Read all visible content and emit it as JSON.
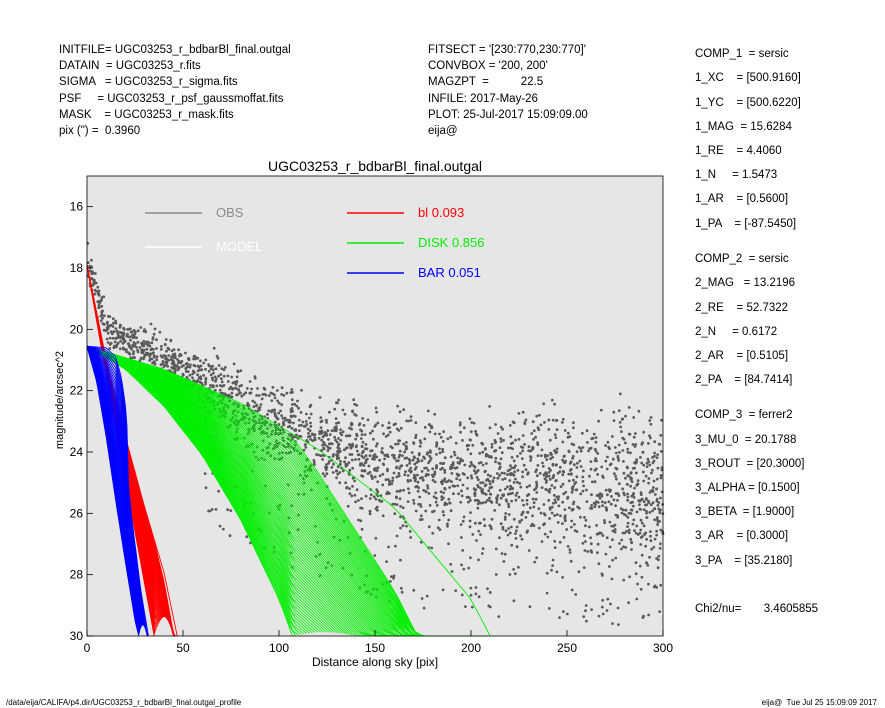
{
  "header": {
    "left": [
      "INITFILE= UGC03253_r_bdbarBl_final.outgal",
      "DATAIN  = UGC03253_r.fits",
      "SIGMA   = UGC03253_r_sigma.fits",
      "PSF     = UGC03253_r_psf_gaussmoffat.fits",
      "MASK    = UGC03253_r_mask.fits",
      "pix (\") =  0.3960"
    ],
    "middle": [
      "FITSECT = '[230:770,230:770]'",
      "CONVBOX = '200, 200'",
      "MAGZPT  =          22.5",
      "INFILE: 2017-May-26",
      "PLOT: 25-Jul-2017 15:09:09.00",
      "eija@"
    ]
  },
  "components": [
    "COMP_1  = sersic",
    "1_XC    = [500.9160]",
    "1_YC    = [500.6220]",
    "1_MAG  = 15.6284",
    "1_RE    = 4.4060",
    "1_N     = 1.5473",
    "1_AR    = [0.5600]",
    "1_PA    = [-87.5450]",
    "",
    "COMP_2  = sersic",
    "2_MAG   = 13.2196",
    "2_RE    = 52.7322",
    "2_N     = 0.6172",
    "2_AR    = [0.5105]",
    "2_PA    = [84.7414]",
    "",
    "COMP_3  = ferrer2",
    "3_MU_0  = 20.1788",
    "3_ROUT  = [20.3000]",
    "3_ALPHA = [0.1500]",
    "3_BETA  = [1.9000]",
    "3_AR    = [0.3000]",
    "3_PA    = [35.2180]",
    "",
    "Chi2/nu=       3.4605855"
  ],
  "footer": {
    "left": "/data/eija/CALIFA/p4.dir/UGC03253_r_bdbarBl_final.outgal_profile",
    "right": "eija@  Tue Jul 25 15:09:09 2017"
  },
  "colors": {
    "plot_bg": "#e6e6e6",
    "obs": "#5a5a5a",
    "obs_legend": "#8c8c8c",
    "model": "#ffffff",
    "bl": "#ff0000",
    "disk": "#00ee00",
    "bar": "#0000ff"
  },
  "chart_data": {
    "type": "scatter",
    "title": "UGC03253_r_bdbarBl_final.outgal",
    "xlabel": "Distance along sky [pix]",
    "ylabel": "magnitude/arcsec^2",
    "xlim": [
      0,
      300
    ],
    "ylim": [
      30,
      15
    ],
    "y_inverted": true,
    "grid": false,
    "x_ticks": [
      0,
      50,
      100,
      150,
      200,
      250,
      300
    ],
    "y_ticks": [
      16,
      18,
      20,
      22,
      24,
      26,
      28,
      30
    ],
    "legend": [
      {
        "label": "OBS",
        "color": "#8c8c8c"
      },
      {
        "label": "MODEL",
        "color": "#ffffff"
      },
      {
        "label": "bl",
        "value": "0.093",
        "color": "#ff0000"
      },
      {
        "label": "DISK",
        "value": "0.856",
        "color": "#00ee00"
      },
      {
        "label": "BAR",
        "value": "0.051",
        "color": "#0000ff"
      }
    ],
    "series": [
      {
        "name": "OBS",
        "points": [
          [
            0,
            17.8
          ],
          [
            10,
            19.9
          ],
          [
            20,
            20.4
          ],
          [
            40,
            21.0
          ],
          [
            60,
            21.7
          ],
          [
            80,
            22.5
          ],
          [
            100,
            23.1
          ],
          [
            120,
            23.7
          ],
          [
            140,
            24.1
          ],
          [
            160,
            24.5
          ],
          [
            180,
            24.7
          ],
          [
            200,
            24.8
          ],
          [
            220,
            24.9
          ],
          [
            240,
            25.0
          ],
          [
            260,
            25.1
          ],
          [
            280,
            25.2
          ],
          [
            300,
            25.3
          ]
        ]
      },
      {
        "name": "bl",
        "inner": [
          [
            0,
            17.9
          ],
          [
            10,
            21.5
          ],
          [
            20,
            24.9
          ],
          [
            30,
            28.3
          ],
          [
            35,
            30.0
          ]
        ],
        "outer": [
          [
            0,
            17.9
          ],
          [
            10,
            21.0
          ],
          [
            20,
            23.5
          ],
          [
            30,
            25.8
          ],
          [
            40,
            27.9
          ],
          [
            47,
            30.0
          ]
        ]
      },
      {
        "name": "DISK",
        "inner": [
          [
            0,
            20.55
          ],
          [
            20,
            21.3
          ],
          [
            40,
            22.5
          ],
          [
            60,
            24.1
          ],
          [
            80,
            26.2
          ],
          [
            100,
            28.8
          ],
          [
            107,
            30.0
          ]
        ],
        "outer": [
          [
            0,
            20.55
          ],
          [
            40,
            21.3
          ],
          [
            80,
            22.4
          ],
          [
            120,
            23.9
          ],
          [
            160,
            25.8
          ],
          [
            200,
            28.8
          ],
          [
            210,
            30.0
          ]
        ]
      },
      {
        "name": "BAR",
        "inner": [
          [
            0,
            20.55
          ],
          [
            5,
            21.7
          ],
          [
            10,
            23.5
          ],
          [
            15,
            25.6
          ],
          [
            20,
            27.6
          ],
          [
            25,
            29.5
          ],
          [
            27,
            30.0
          ]
        ],
        "outer": [
          [
            0,
            20.55
          ],
          [
            10,
            20.6
          ],
          [
            15,
            20.9
          ],
          [
            18,
            21.6
          ],
          [
            20,
            22.5
          ],
          [
            21,
            23.3
          ],
          [
            20,
            24.0
          ],
          [
            23,
            26.0
          ],
          [
            28,
            28.5
          ],
          [
            32,
            30.0
          ]
        ]
      }
    ]
  }
}
